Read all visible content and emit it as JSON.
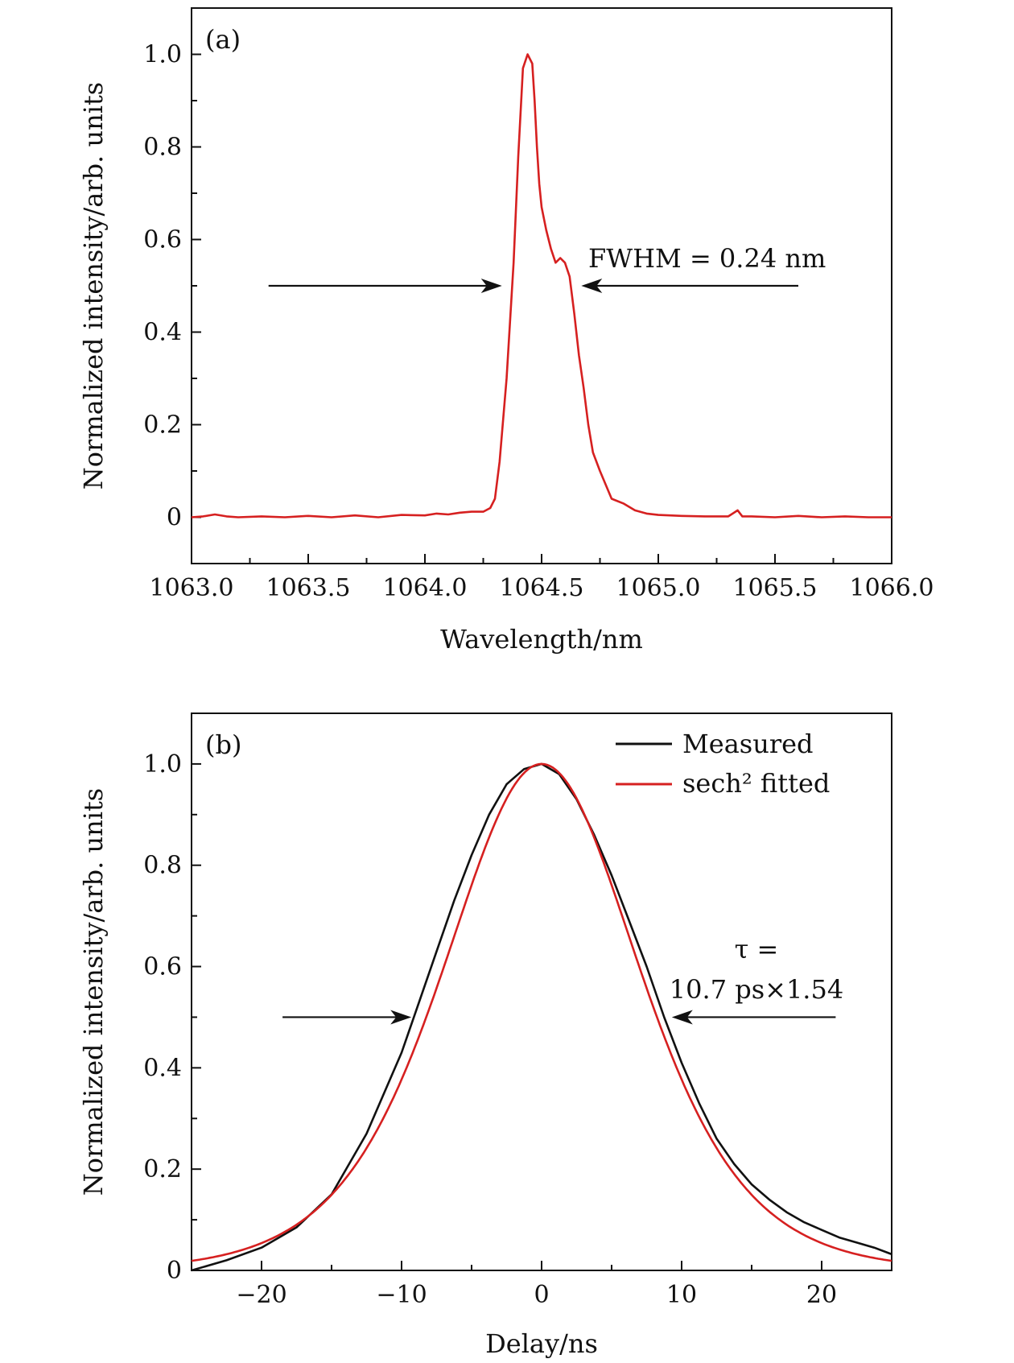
{
  "chart_data": [
    {
      "type": "line",
      "panel_label": "(a)",
      "xlabel": "Wavelength/nm",
      "ylabel": "Normalized intensity/arb. units",
      "xlim": [
        1063.0,
        1066.0
      ],
      "ylim": [
        -0.1,
        1.1
      ],
      "xticks": [
        1063.0,
        1063.5,
        1064.0,
        1064.5,
        1065.0,
        1065.5,
        1066.0
      ],
      "xtick_labels": [
        "1063.0",
        "1063.5",
        "1064.0",
        "1064.5",
        "1065.0",
        "1065.5",
        "1066.0"
      ],
      "yticks": [
        0,
        0.2,
        0.4,
        0.6,
        0.8,
        1.0
      ],
      "ytick_labels": [
        "0",
        "0.2",
        "0.4",
        "0.6",
        "0.8",
        "1.0"
      ],
      "grid": false,
      "annotations": [
        {
          "text": "FWHM = 0.24 nm",
          "arrow_from_x": 1063.33,
          "arrow_to_x": 1064.33,
          "arrow_y": 0.5,
          "arrow2_from_x": 1065.6,
          "arrow2_to_x": 1064.67
        }
      ],
      "series": [
        {
          "color": "#d62020",
          "x": [
            1063.0,
            1063.05,
            1063.1,
            1063.15,
            1063.2,
            1063.3,
            1063.4,
            1063.5,
            1063.6,
            1063.7,
            1063.8,
            1063.9,
            1064.0,
            1064.05,
            1064.1,
            1064.15,
            1064.2,
            1064.25,
            1064.28,
            1064.3,
            1064.32,
            1064.35,
            1064.38,
            1064.4,
            1064.42,
            1064.44,
            1064.46,
            1064.47,
            1064.48,
            1064.49,
            1064.5,
            1064.52,
            1064.54,
            1064.56,
            1064.58,
            1064.6,
            1064.62,
            1064.64,
            1064.66,
            1064.68,
            1064.7,
            1064.72,
            1064.75,
            1064.8,
            1064.85,
            1064.9,
            1064.95,
            1065.0,
            1065.1,
            1065.2,
            1065.3,
            1065.34,
            1065.36,
            1065.4,
            1065.5,
            1065.6,
            1065.7,
            1065.8,
            1065.9,
            1066.0
          ],
          "y": [
            0.0,
            0.002,
            0.006,
            0.002,
            0.0,
            0.002,
            0.0,
            0.003,
            0.0,
            0.004,
            0.0,
            0.005,
            0.004,
            0.008,
            0.006,
            0.01,
            0.012,
            0.012,
            0.02,
            0.04,
            0.12,
            0.3,
            0.55,
            0.78,
            0.97,
            1.0,
            0.98,
            0.9,
            0.8,
            0.72,
            0.67,
            0.62,
            0.58,
            0.55,
            0.56,
            0.55,
            0.52,
            0.44,
            0.35,
            0.28,
            0.2,
            0.14,
            0.1,
            0.04,
            0.03,
            0.015,
            0.008,
            0.005,
            0.003,
            0.002,
            0.002,
            0.015,
            0.002,
            0.002,
            0.0,
            0.003,
            0.0,
            0.002,
            0.0,
            0.0
          ]
        }
      ]
    },
    {
      "type": "line",
      "panel_label": "(b)",
      "xlabel": "Delay/ns",
      "ylabel": "Normalized intensity/arb. units",
      "xlim": [
        -25,
        25
      ],
      "ylim": [
        0,
        1.1
      ],
      "xticks": [
        -20,
        -10,
        0,
        10,
        20
      ],
      "xtick_labels": [
        "−20",
        "−10",
        "0",
        "10",
        "20"
      ],
      "yticks": [
        0,
        0.2,
        0.4,
        0.6,
        0.8,
        1.0
      ],
      "ytick_labels": [
        "0",
        "0.2",
        "0.4",
        "0.6",
        "0.8",
        "1.0"
      ],
      "grid": false,
      "legend": {
        "placement": "top-right"
      },
      "annotations": [
        {
          "text_line1": "τ =",
          "text_line2": "10.7 ps×1.54",
          "arrow_from_x": -18.5,
          "arrow_to_x": -9.3,
          "arrow_y": 0.5,
          "arrow2_from_x": 21.0,
          "arrow2_to_x": 9.3
        }
      ],
      "series": [
        {
          "name": "Measured",
          "color": "#111111",
          "x": [
            -25,
            -22.5,
            -20,
            -17.5,
            -15,
            -12.5,
            -10,
            -8.75,
            -7.5,
            -6.25,
            -5,
            -3.75,
            -2.5,
            -1.25,
            0,
            1.25,
            2.5,
            3.75,
            5,
            6.25,
            7.5,
            8.75,
            10,
            11.25,
            12.5,
            13.75,
            15,
            16.25,
            17.5,
            18.75,
            20,
            21.25,
            22.5,
            23.75,
            25
          ],
          "y": [
            0.0,
            0.02,
            0.045,
            0.085,
            0.15,
            0.27,
            0.43,
            0.53,
            0.63,
            0.73,
            0.82,
            0.9,
            0.96,
            0.99,
            1.0,
            0.98,
            0.93,
            0.86,
            0.78,
            0.69,
            0.6,
            0.5,
            0.41,
            0.33,
            0.26,
            0.21,
            0.17,
            0.14,
            0.115,
            0.095,
            0.08,
            0.065,
            0.055,
            0.045,
            0.032
          ]
        },
        {
          "name": "sech² fitted",
          "color": "#d62020",
          "fwhm": 16.48,
          "center": 0
        }
      ]
    }
  ]
}
